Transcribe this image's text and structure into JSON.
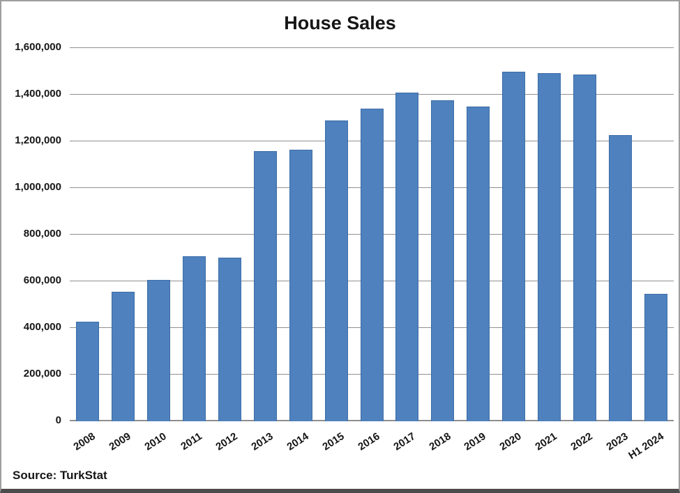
{
  "chart_data": {
    "type": "bar",
    "title": "House Sales",
    "categories": [
      "2008",
      "2009",
      "2010",
      "2011",
      "2012",
      "2013",
      "2014",
      "2015",
      "2016",
      "2017",
      "2018",
      "2019",
      "2020",
      "2021",
      "2022",
      "2023",
      "H1 2024"
    ],
    "values": [
      427000,
      555000,
      607000,
      708000,
      702000,
      1157000,
      1165000,
      1289000,
      1341000,
      1409000,
      1375000,
      1349000,
      1499000,
      1492000,
      1486000,
      1226000,
      545000
    ],
    "xlabel": "",
    "ylabel": "",
    "ylim": [
      0,
      1600000
    ],
    "ytick_step": 200000,
    "ytick_labels": [
      "0",
      "200,000",
      "400,000",
      "600,000",
      "800,000",
      "1,000,000",
      "1,200,000",
      "1,400,000",
      "1,600,000"
    ],
    "grid": "horizontal",
    "legend_position": "none",
    "bar_color": "#4E81BD",
    "bar_border_color": "#3D6DA8",
    "gridline_color": "#8f8f8f",
    "text_color": "#161616"
  },
  "source": {
    "text": "Source: TurkStat"
  }
}
